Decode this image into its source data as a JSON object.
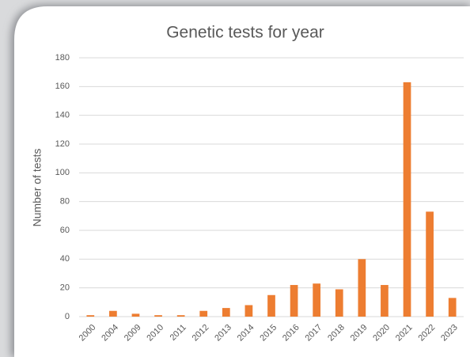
{
  "chart_data": {
    "type": "bar",
    "title": "Genetic tests for year",
    "y_label": "Number of tests",
    "categories": [
      "2000",
      "2004",
      "2009",
      "2010",
      "2011",
      "2012",
      "2013",
      "2014",
      "2015",
      "2016",
      "2017",
      "2018",
      "2019",
      "2020",
      "2021",
      "2022",
      "2023"
    ],
    "values": [
      1,
      4,
      2,
      1,
      1,
      4,
      6,
      8,
      15,
      22,
      23,
      19,
      40,
      22,
      163,
      73,
      13
    ],
    "color": "#ed7d31",
    "ylim": [
      0,
      180
    ],
    "yticks": [
      0,
      20,
      40,
      60,
      80,
      100,
      120,
      140,
      160,
      180
    ],
    "grid": true
  }
}
